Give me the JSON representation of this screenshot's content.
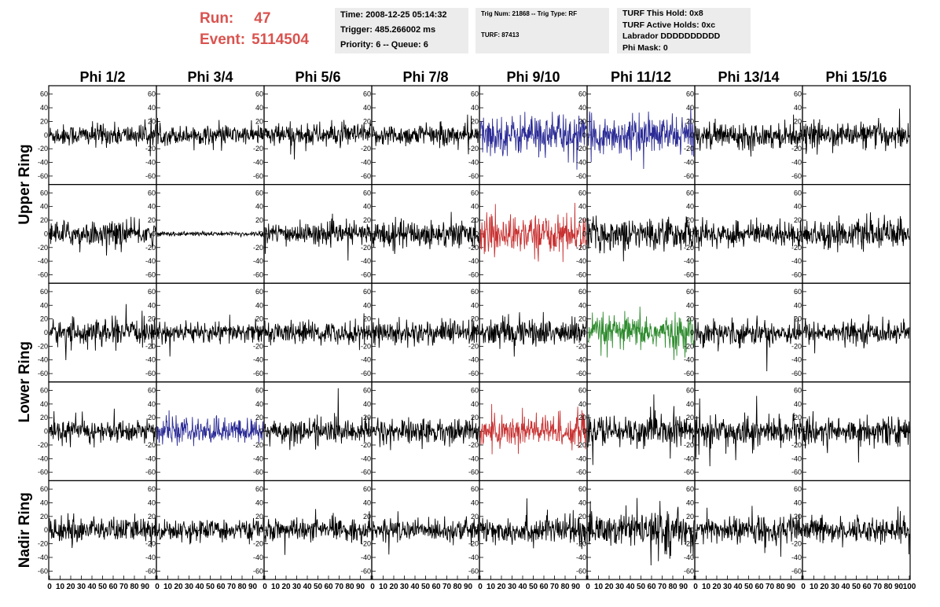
{
  "header": {
    "run_label": "Run:",
    "run_value": "47",
    "event_label": "Event:",
    "event_value": "5114504"
  },
  "info_box_time": {
    "time": "Time: 2008-12-25 05:14:32",
    "trigger": "Trigger: 485.266002 ms",
    "priority": "Priority: 6 -- Queue: 6"
  },
  "info_box_trig": {
    "trig": "Trig Num: 21868 -- Trig Type: RF",
    "turf": "TURF: 87413"
  },
  "info_box_turf": {
    "hold": "TURF This Hold: 0x8",
    "active": "TURF Active Holds: 0xc",
    "labrador": "Labrador DDDDDDDDDD",
    "phimask": "Phi Mask: 0"
  },
  "colors": {
    "header_red": "#d9534f",
    "black_trace": "#000000",
    "blue_trace": "#2b2b96",
    "red_trace": "#c83232",
    "green_trace": "#2e8b2e",
    "box_bg": "#ececec"
  },
  "chart_data": {
    "type": "line",
    "columns": [
      "Phi 1/2",
      "Phi 3/4",
      "Phi 5/6",
      "Phi 7/8",
      "Phi 9/10",
      "Phi 11/12",
      "Phi 13/14",
      "Phi 15/16"
    ],
    "row_groups": [
      "Upper Ring",
      "Lower Ring",
      "Nadir Ring"
    ],
    "rows": 5,
    "xlim": [
      0,
      100
    ],
    "ylim": [
      -70,
      70
    ],
    "y_ticks": [
      -60,
      -40,
      -20,
      0,
      20,
      40,
      60
    ],
    "x_tick_labels": [
      "0",
      "10",
      "20",
      "30",
      "40",
      "50",
      "60",
      "70",
      "80",
      "90",
      "100"
    ],
    "panels": [
      [
        {
          "color": "black",
          "amp": 14
        },
        {
          "color": "black",
          "amp": 12
        },
        {
          "color": "black",
          "amp": 15
        },
        {
          "color": "black",
          "amp": 14
        },
        {
          "color": "blue",
          "amp": 25
        },
        {
          "color": "blue",
          "amp": 24
        },
        {
          "color": "black",
          "amp": 16
        },
        {
          "color": "black",
          "amp": 16
        }
      ],
      [
        {
          "color": "black",
          "amp": 16
        },
        {
          "color": "black",
          "amp": 3
        },
        {
          "color": "black",
          "amp": 14
        },
        {
          "color": "black",
          "amp": 18
        },
        {
          "color": "red",
          "amp": 24
        },
        {
          "color": "black",
          "amp": 20
        },
        {
          "color": "black",
          "amp": 16
        },
        {
          "color": "black",
          "amp": 18
        }
      ],
      [
        {
          "color": "black",
          "amp": 16
        },
        {
          "color": "black",
          "amp": 13
        },
        {
          "color": "black",
          "amp": 14
        },
        {
          "color": "black",
          "amp": 16
        },
        {
          "color": "black",
          "amp": 18
        },
        {
          "color": "green",
          "amp": 22
        },
        {
          "color": "black",
          "amp": 16
        },
        {
          "color": "black",
          "amp": 14
        }
      ],
      [
        {
          "color": "black",
          "amp": 14
        },
        {
          "color": "blue",
          "amp": 16
        },
        {
          "color": "black",
          "amp": 16
        },
        {
          "color": "black",
          "amp": 16
        },
        {
          "color": "red",
          "amp": 22
        },
        {
          "color": "black",
          "amp": 20
        },
        {
          "color": "black",
          "amp": 18
        },
        {
          "color": "black",
          "amp": 18
        }
      ],
      [
        {
          "color": "black",
          "amp": 16
        },
        {
          "color": "black",
          "amp": 13
        },
        {
          "color": "black",
          "amp": 14
        },
        {
          "color": "black",
          "amp": 14
        },
        {
          "color": "black",
          "amp": 18
        },
        {
          "color": "black",
          "amp": 22
        },
        {
          "color": "black",
          "amp": 18
        },
        {
          "color": "black",
          "amp": 16
        }
      ]
    ]
  }
}
